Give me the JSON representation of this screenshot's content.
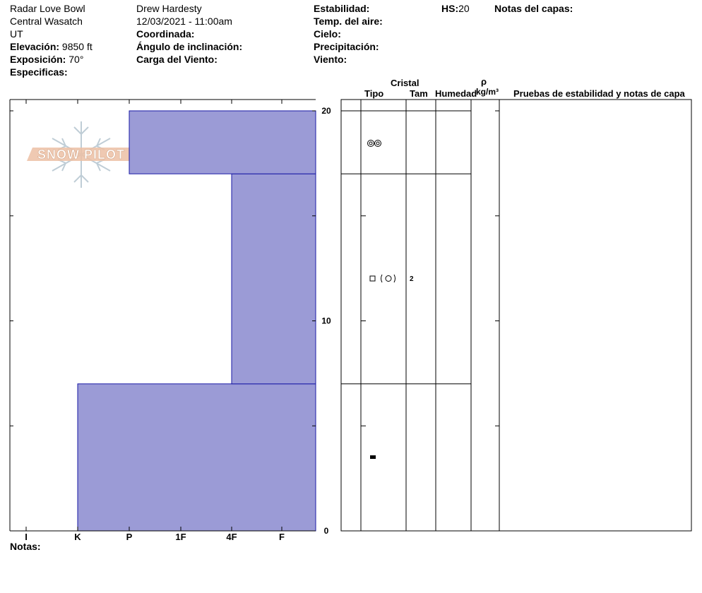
{
  "header": {
    "location": "Radar Love Bowl",
    "range": "Central Wasatch",
    "state": "UT",
    "elevation_label": "Elevación:",
    "elevation_value": "9850 ft",
    "aspect_label": "Exposición:",
    "aspect_value": "70°",
    "specifics_label": "Especificas:",
    "observer": "Drew Hardesty",
    "datetime": "12/03/2021 - 11:00am",
    "coord_label": "Coordinada:",
    "slope_label": "Ángulo de inclinación:",
    "wind_load_label": "Carga del Viento:",
    "stability_label": "Estabilidad:",
    "air_temp_label": "Temp. del aire:",
    "sky_label": "Cielo:",
    "precip_label": "Precipitación:",
    "wind_label": "Viento:",
    "hs_label": "HS:",
    "hs_value": "20",
    "layer_notes_label": "Notas del capas:"
  },
  "columns": {
    "crystal": "Cristal",
    "type": "Tipo",
    "size": "Tam",
    "moisture": "Humedad",
    "rho": "ρ",
    "density_unit": "kg/m³",
    "tests": "Pruebas de estabilidad y notas de capa"
  },
  "watermark": "SNOW PILOT",
  "notes_label": "Notas:",
  "colors": {
    "layer_fill": "#9b9bd6",
    "layer_stroke": "#1a1aa6",
    "watermark": "#e8b898"
  },
  "chart_data": {
    "type": "bar",
    "orientation": "horizontal-step",
    "x_categories": [
      "I",
      "K",
      "P",
      "1F",
      "4F",
      "F"
    ],
    "y_ticks": [
      "0",
      "10",
      "20"
    ],
    "ylim": [
      0,
      20
    ],
    "layers": [
      {
        "bottom": 0,
        "top": 7,
        "hardness": "K",
        "grain_type": "melt-freeze",
        "grain_size": ""
      },
      {
        "bottom": 7,
        "top": 17,
        "hardness": "4F",
        "grain_type": "faceted (rounding)",
        "grain_size": "2"
      },
      {
        "bottom": 17,
        "top": 20,
        "hardness": "P",
        "grain_type": "decomposing",
        "grain_size": ""
      }
    ]
  }
}
